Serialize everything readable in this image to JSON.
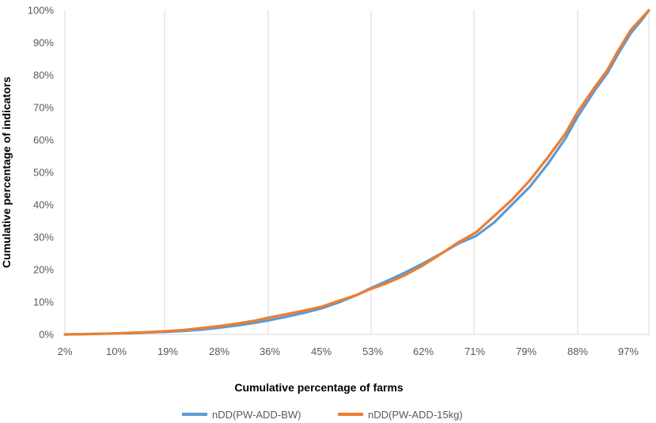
{
  "chart_data": {
    "type": "line",
    "xlabel": "Cumulative percentage of farms",
    "ylabel": "Cumulative percentage of indicators",
    "x_tick_labels": [
      "2%",
      "10%",
      "19%",
      "28%",
      "36%",
      "45%",
      "53%",
      "62%",
      "71%",
      "79%",
      "88%",
      "97%"
    ],
    "x_tick_values": [
      2,
      10,
      19,
      28,
      36,
      45,
      53,
      62,
      71,
      79,
      88,
      97
    ],
    "y_tick_labels": [
      "0%",
      "10%",
      "20%",
      "30%",
      "40%",
      "50%",
      "60%",
      "70%",
      "80%",
      "90%",
      "100%"
    ],
    "xlim": [
      2,
      100
    ],
    "ylim": [
      0,
      100
    ],
    "grid": "vertical",
    "legend_position": "bottom",
    "series": [
      {
        "name": "nDD(PW-ADD-BW)",
        "color": "#5b9bd5",
        "x": [
          2,
          5,
          8,
          10,
          13,
          16,
          19,
          22,
          25,
          28,
          31,
          34,
          36,
          39,
          42,
          45,
          48,
          51,
          53,
          56,
          59,
          62,
          65,
          68,
          71,
          74,
          77,
          80,
          83,
          86,
          88,
          91,
          93,
          95,
          97,
          99,
          100
        ],
        "y": [
          0,
          0.1,
          0.2,
          0.3,
          0.4,
          0.6,
          0.8,
          1.1,
          1.5,
          2.1,
          2.8,
          3.6,
          4.3,
          5.4,
          6.6,
          8.0,
          9.9,
          12.2,
          14.0,
          16.5,
          19.0,
          21.8,
          24.8,
          28.0,
          30.4,
          34.5,
          40.0,
          45.5,
          52.5,
          60.5,
          67.0,
          75.5,
          80.5,
          87.0,
          93.0,
          97.5,
          100
        ]
      },
      {
        "name": "nDD(PW-ADD-15kg)",
        "color": "#ed7d31",
        "x": [
          2,
          5,
          8,
          10,
          13,
          16,
          19,
          22,
          25,
          28,
          31,
          34,
          36,
          39,
          42,
          45,
          48,
          51,
          53,
          56,
          59,
          62,
          65,
          68,
          71,
          74,
          77,
          80,
          83,
          86,
          88,
          91,
          93,
          95,
          97,
          99,
          100
        ],
        "y": [
          0,
          0.1,
          0.2,
          0.3,
          0.5,
          0.7,
          1.0,
          1.4,
          2.0,
          2.6,
          3.4,
          4.3,
          5.1,
          6.2,
          7.3,
          8.5,
          10.4,
          12.2,
          13.8,
          15.8,
          18.2,
          21.2,
          24.7,
          28.4,
          31.5,
          36.5,
          41.5,
          47.5,
          54.5,
          62.0,
          68.5,
          76.5,
          81.5,
          88.0,
          94.0,
          98.0,
          100
        ]
      }
    ]
  }
}
